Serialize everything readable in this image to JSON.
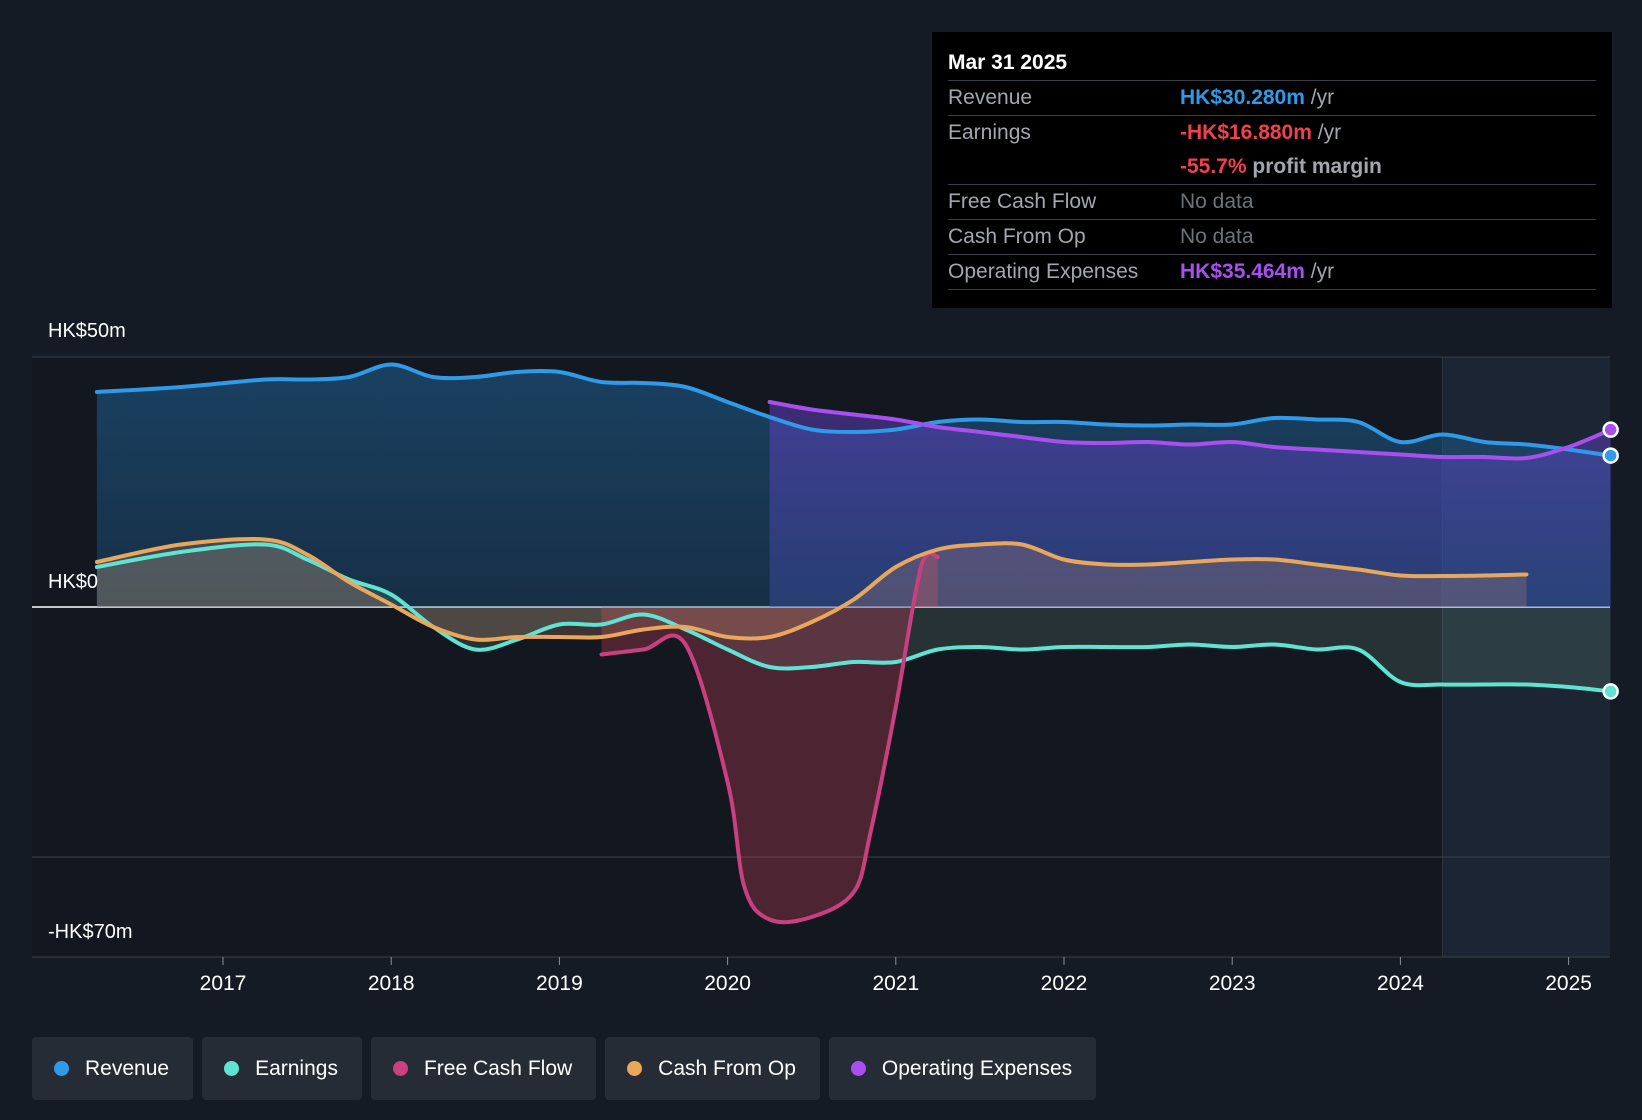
{
  "tooltip": {
    "date": "Mar 31 2025",
    "revenue_label": "Revenue",
    "revenue_value": "HK$30.280m",
    "earnings_label": "Earnings",
    "earnings_value": "-HK$16.880m",
    "margin_value": "-55.7%",
    "margin_suffix": "profit margin",
    "fcf_label": "Free Cash Flow",
    "fcf_value": "No data",
    "cfo_label": "Cash From Op",
    "cfo_value": "No data",
    "opex_label": "Operating Expenses",
    "opex_value": "HK$35.464m",
    "per_year": "/yr"
  },
  "axis": {
    "y_top_label": "HK$50m",
    "y_zero_label": "HK$0",
    "y_bottom_label": "-HK$70m"
  },
  "legend": [
    {
      "label": "Revenue",
      "color": "#2f9ae8"
    },
    {
      "label": "Earnings",
      "color": "#5fe3d2"
    },
    {
      "label": "Free Cash Flow",
      "color": "#c8407e"
    },
    {
      "label": "Cash From Op",
      "color": "#e9a75b"
    },
    {
      "label": "Operating Expenses",
      "color": "#a84ff0"
    }
  ],
  "chart_data": {
    "type": "line",
    "x_ticks": [
      "2017",
      "2018",
      "2019",
      "2020",
      "2021",
      "2022",
      "2023",
      "2024",
      "2025"
    ],
    "ylim": [
      -70,
      50
    ],
    "y_grid": [
      50,
      0,
      -50
    ],
    "series": [
      {
        "name": "Revenue",
        "color": "#2f9ae8",
        "x": [
          2016.25,
          2016.75,
          2017.25,
          2017.5,
          2017.75,
          2018.0,
          2018.25,
          2018.5,
          2018.75,
          2019.0,
          2019.25,
          2019.5,
          2019.75,
          2020.0,
          2020.25,
          2020.5,
          2020.75,
          2021.0,
          2021.25,
          2021.5,
          2021.75,
          2022.0,
          2022.25,
          2022.5,
          2022.75,
          2023.0,
          2023.25,
          2023.5,
          2023.75,
          2024.0,
          2024.25,
          2024.5,
          2024.75,
          2025.0,
          2025.25
        ],
        "values": [
          43,
          44,
          45.5,
          45.5,
          46,
          48.5,
          46,
          46,
          47,
          47,
          45,
          44.8,
          44,
          41,
          38,
          35.5,
          35,
          35.5,
          37,
          37.5,
          37,
          37,
          36.5,
          36.3,
          36.5,
          36.5,
          37.8,
          37.5,
          37,
          33,
          34.5,
          33,
          32.5,
          31.5,
          30.28
        ]
      },
      {
        "name": "Earnings",
        "color": "#5fe3d2",
        "x": [
          2016.25,
          2016.75,
          2017.25,
          2017.5,
          2017.75,
          2018.0,
          2018.25,
          2018.5,
          2018.75,
          2019.0,
          2019.25,
          2019.5,
          2019.75,
          2020.0,
          2020.25,
          2020.5,
          2020.75,
          2021.0,
          2021.25,
          2021.5,
          2021.75,
          2022.0,
          2022.25,
          2022.5,
          2022.75,
          2023.0,
          2023.25,
          2023.5,
          2023.75,
          2024.0,
          2024.25,
          2024.5,
          2024.75,
          2025.0,
          2025.25
        ],
        "values": [
          8,
          11,
          12.5,
          9.5,
          5.5,
          2.5,
          -4,
          -8.5,
          -6.5,
          -3.5,
          -3.5,
          -1.5,
          -4.5,
          -8.5,
          -12,
          -12,
          -11,
          -11,
          -8.5,
          -8,
          -8.5,
          -8,
          -8,
          -8,
          -7.5,
          -8,
          -7.5,
          -8.5,
          -8.5,
          -15,
          -15.5,
          -15.5,
          -15.5,
          -16,
          -16.88
        ]
      },
      {
        "name": "Free Cash Flow",
        "color": "#c8407e",
        "x": [
          2019.25,
          2019.5,
          2019.75,
          2020.0,
          2020.1,
          2020.25,
          2020.5,
          2020.75,
          2020.85,
          2021.0,
          2021.15,
          2021.25
        ],
        "values": [
          -9.5,
          -8.5,
          -7.5,
          -35,
          -56,
          -62.5,
          -62,
          -57,
          -45,
          -20,
          8,
          10
        ]
      },
      {
        "name": "Cash From Op",
        "color": "#e9a75b",
        "x": [
          2016.25,
          2016.75,
          2017.25,
          2017.5,
          2017.75,
          2018.0,
          2018.25,
          2018.5,
          2018.75,
          2019.0,
          2019.25,
          2019.5,
          2019.75,
          2020.0,
          2020.25,
          2020.5,
          2020.75,
          2021.0,
          2021.25,
          2021.5,
          2021.75,
          2022.0,
          2022.25,
          2022.5,
          2022.75,
          2023.0,
          2023.25,
          2023.5,
          2023.75,
          2024.0,
          2024.25,
          2024.5,
          2024.75
        ],
        "values": [
          9,
          12.5,
          13.5,
          10.5,
          5,
          0.5,
          -4,
          -6.5,
          -6,
          -6,
          -6,
          -4.5,
          -4,
          -6,
          -6,
          -3,
          1.5,
          8,
          11.5,
          12.5,
          12.5,
          9.5,
          8.5,
          8.5,
          9,
          9.5,
          9.5,
          8.5,
          7.5,
          6.3,
          6.2,
          6.3,
          6.5
        ]
      },
      {
        "name": "Operating Expenses",
        "color": "#a84ff0",
        "x": [
          2020.25,
          2020.5,
          2020.75,
          2021.0,
          2021.25,
          2021.5,
          2021.75,
          2022.0,
          2022.25,
          2022.5,
          2022.75,
          2023.0,
          2023.25,
          2023.5,
          2023.75,
          2024.0,
          2024.25,
          2024.5,
          2024.75,
          2025.0,
          2025.25
        ],
        "values": [
          41,
          39.5,
          38.5,
          37.5,
          36,
          35,
          34,
          33,
          32.8,
          33,
          32.5,
          33,
          32,
          31.5,
          31,
          30.5,
          30,
          30,
          29.8,
          32,
          35.464
        ]
      }
    ]
  }
}
